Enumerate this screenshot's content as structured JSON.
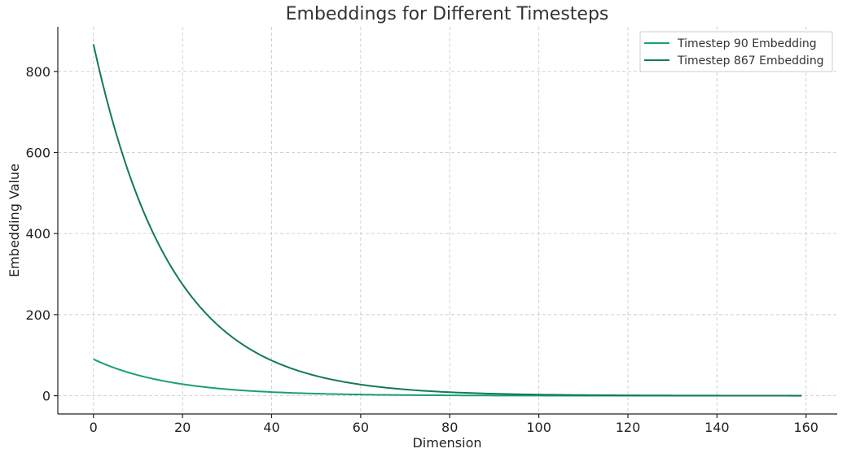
{
  "chart_data": {
    "type": "line",
    "title": "Embeddings for Different Timesteps",
    "xlabel": "Dimension",
    "ylabel": "Embedding Value",
    "xlim": [
      -8,
      167
    ],
    "ylim": [
      -45,
      910
    ],
    "xticks": [
      0,
      20,
      40,
      60,
      80,
      100,
      120,
      140,
      160
    ],
    "yticks": [
      0,
      200,
      400,
      600,
      800
    ],
    "grid": true,
    "legend_position": "top-right",
    "dimensions": 160,
    "decay_rate": 0.0575,
    "series": [
      {
        "name": "Timestep 90 Embedding",
        "start_value": 90,
        "color": "#1a9e7a"
      },
      {
        "name": "Timestep 867 Embedding",
        "start_value": 867,
        "color": "#137a55"
      }
    ]
  }
}
